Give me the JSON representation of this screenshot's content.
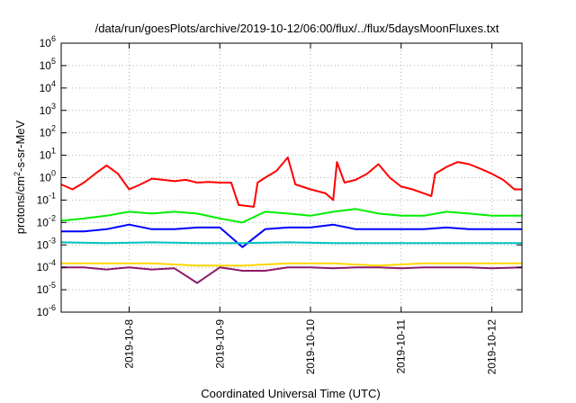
{
  "chart_data": {
    "type": "line",
    "title": "/data/run/goesPlots/archive/2019-10-12/06:00/flux/../flux/5daysMoonFluxes.txt",
    "xlabel": "Coordinated Universal Time (UTC)",
    "ylabel": {
      "prefix": "protons/cm",
      "sup": "2",
      "suffix": "-s-sr-MeV"
    },
    "x_range": [
      "2019-10-07 06:00",
      "2019-10-12 08:00"
    ],
    "x_ticks": [
      "2019-10-8",
      "2019-10-9",
      "2019-10-10",
      "2019-10-11",
      "2019-10-12"
    ],
    "y_scale": "log",
    "y_range": [
      1e-06,
      1000000.0
    ],
    "y_ticks": [
      {
        "base": "10",
        "exp": "-6"
      },
      {
        "base": "10",
        "exp": "-5"
      },
      {
        "base": "10",
        "exp": "-4"
      },
      {
        "base": "10",
        "exp": "-3"
      },
      {
        "base": "10",
        "exp": "-2"
      },
      {
        "base": "10",
        "exp": "-1"
      },
      {
        "base": "10",
        "exp": "0"
      },
      {
        "base": "10",
        "exp": "1"
      },
      {
        "base": "10",
        "exp": "2"
      },
      {
        "base": "10",
        "exp": "3"
      },
      {
        "base": "10",
        "exp": "4"
      },
      {
        "base": "10",
        "exp": "5"
      },
      {
        "base": "10",
        "exp": "6"
      }
    ],
    "grid": true,
    "legend": "none",
    "series": [
      {
        "color": "#ff0000",
        "points": [
          [
            "2019-10-07 06:00",
            0.5
          ],
          [
            "2019-10-07 09:00",
            0.3
          ],
          [
            "2019-10-07 12:00",
            0.6
          ],
          [
            "2019-10-07 15:00",
            1.5
          ],
          [
            "2019-10-07 18:00",
            3.5
          ],
          [
            "2019-10-07 21:00",
            1.5
          ],
          [
            "2019-10-08 00:00",
            0.3
          ],
          [
            "2019-10-08 03:00",
            0.5
          ],
          [
            "2019-10-08 06:00",
            0.9
          ],
          [
            "2019-10-08 09:00",
            0.8
          ],
          [
            "2019-10-08 12:00",
            0.7
          ],
          [
            "2019-10-08 15:00",
            0.8
          ],
          [
            "2019-10-08 18:00",
            0.6
          ],
          [
            "2019-10-08 21:00",
            0.65
          ],
          [
            "2019-10-09 00:00",
            0.6
          ],
          [
            "2019-10-09 03:00",
            0.6
          ],
          [
            "2019-10-09 05:00",
            0.06
          ],
          [
            "2019-10-09 09:00",
            0.05
          ],
          [
            "2019-10-09 10:00",
            0.6
          ],
          [
            "2019-10-09 12:00",
            1.0
          ],
          [
            "2019-10-09 15:00",
            2.0
          ],
          [
            "2019-10-09 18:00",
            8.0
          ],
          [
            "2019-10-09 20:00",
            0.5
          ],
          [
            "2019-10-10 00:00",
            0.3
          ],
          [
            "2019-10-10 04:00",
            0.2
          ],
          [
            "2019-10-10 06:00",
            0.1
          ],
          [
            "2019-10-10 07:00",
            5.0
          ],
          [
            "2019-10-10 09:00",
            0.6
          ],
          [
            "2019-10-10 12:00",
            0.8
          ],
          [
            "2019-10-10 15:00",
            1.5
          ],
          [
            "2019-10-10 18:00",
            4.0
          ],
          [
            "2019-10-10 21:00",
            1.0
          ],
          [
            "2019-10-11 00:00",
            0.4
          ],
          [
            "2019-10-11 03:00",
            0.3
          ],
          [
            "2019-10-11 06:00",
            0.2
          ],
          [
            "2019-10-11 08:00",
            0.15
          ],
          [
            "2019-10-11 09:00",
            1.5
          ],
          [
            "2019-10-11 12:00",
            3.0
          ],
          [
            "2019-10-11 15:00",
            5.0
          ],
          [
            "2019-10-11 18:00",
            4.0
          ],
          [
            "2019-10-11 21:00",
            2.5
          ],
          [
            "2019-10-12 00:00",
            1.5
          ],
          [
            "2019-10-12 03:00",
            0.8
          ],
          [
            "2019-10-12 06:00",
            0.3
          ],
          [
            "2019-10-12 08:00",
            0.3
          ]
        ]
      },
      {
        "color": "#00ee00",
        "points": [
          [
            "2019-10-07 06:00",
            0.012
          ],
          [
            "2019-10-07 12:00",
            0.015
          ],
          [
            "2019-10-07 18:00",
            0.02
          ],
          [
            "2019-10-08 00:00",
            0.03
          ],
          [
            "2019-10-08 06:00",
            0.025
          ],
          [
            "2019-10-08 12:00",
            0.03
          ],
          [
            "2019-10-08 18:00",
            0.025
          ],
          [
            "2019-10-09 00:00",
            0.015
          ],
          [
            "2019-10-09 06:00",
            0.01
          ],
          [
            "2019-10-09 12:00",
            0.03
          ],
          [
            "2019-10-09 18:00",
            0.025
          ],
          [
            "2019-10-10 00:00",
            0.02
          ],
          [
            "2019-10-10 06:00",
            0.03
          ],
          [
            "2019-10-10 12:00",
            0.04
          ],
          [
            "2019-10-10 18:00",
            0.025
          ],
          [
            "2019-10-11 00:00",
            0.02
          ],
          [
            "2019-10-11 06:00",
            0.02
          ],
          [
            "2019-10-11 12:00",
            0.03
          ],
          [
            "2019-10-11 18:00",
            0.025
          ],
          [
            "2019-10-12 00:00",
            0.02
          ],
          [
            "2019-10-12 08:00",
            0.02
          ]
        ]
      },
      {
        "color": "#0000ff",
        "points": [
          [
            "2019-10-07 06:00",
            0.004
          ],
          [
            "2019-10-07 12:00",
            0.004
          ],
          [
            "2019-10-07 18:00",
            0.005
          ],
          [
            "2019-10-08 00:00",
            0.008
          ],
          [
            "2019-10-08 06:00",
            0.005
          ],
          [
            "2019-10-08 12:00",
            0.005
          ],
          [
            "2019-10-08 18:00",
            0.006
          ],
          [
            "2019-10-09 00:00",
            0.006
          ],
          [
            "2019-10-09 06:00",
            0.0008
          ],
          [
            "2019-10-09 12:00",
            0.005
          ],
          [
            "2019-10-09 18:00",
            0.006
          ],
          [
            "2019-10-10 00:00",
            0.006
          ],
          [
            "2019-10-10 06:00",
            0.008
          ],
          [
            "2019-10-10 12:00",
            0.005
          ],
          [
            "2019-10-10 18:00",
            0.005
          ],
          [
            "2019-10-11 00:00",
            0.005
          ],
          [
            "2019-10-11 06:00",
            0.005
          ],
          [
            "2019-10-11 12:00",
            0.006
          ],
          [
            "2019-10-11 18:00",
            0.005
          ],
          [
            "2019-10-12 00:00",
            0.005
          ],
          [
            "2019-10-12 08:00",
            0.005
          ]
        ]
      },
      {
        "color": "#00c0c0",
        "points": [
          [
            "2019-10-07 06:00",
            0.0013
          ],
          [
            "2019-10-07 18:00",
            0.0012
          ],
          [
            "2019-10-08 06:00",
            0.0013
          ],
          [
            "2019-10-08 18:00",
            0.0012
          ],
          [
            "2019-10-09 06:00",
            0.0012
          ],
          [
            "2019-10-09 18:00",
            0.0013
          ],
          [
            "2019-10-10 06:00",
            0.0012
          ],
          [
            "2019-10-10 18:00",
            0.0012
          ],
          [
            "2019-10-11 06:00",
            0.0012
          ],
          [
            "2019-10-11 18:00",
            0.0012
          ],
          [
            "2019-10-12 08:00",
            0.0012
          ]
        ]
      },
      {
        "color": "#ffd700",
        "points": [
          [
            "2019-10-07 06:00",
            0.00015
          ],
          [
            "2019-10-07 18:00",
            0.00015
          ],
          [
            "2019-10-08 06:00",
            0.00015
          ],
          [
            "2019-10-08 18:00",
            0.00012
          ],
          [
            "2019-10-09 06:00",
            0.00012
          ],
          [
            "2019-10-09 18:00",
            0.00015
          ],
          [
            "2019-10-10 06:00",
            0.00015
          ],
          [
            "2019-10-10 18:00",
            0.00012
          ],
          [
            "2019-10-11 06:00",
            0.00015
          ],
          [
            "2019-10-11 18:00",
            0.00015
          ],
          [
            "2019-10-12 08:00",
            0.00015
          ]
        ]
      },
      {
        "color": "#8b1a6b",
        "points": [
          [
            "2019-10-07 06:00",
            0.0001
          ],
          [
            "2019-10-07 12:00",
            0.0001
          ],
          [
            "2019-10-07 18:00",
            8e-05
          ],
          [
            "2019-10-08 00:00",
            0.0001
          ],
          [
            "2019-10-08 06:00",
            8e-05
          ],
          [
            "2019-10-08 12:00",
            9e-05
          ],
          [
            "2019-10-08 18:00",
            2e-05
          ],
          [
            "2019-10-09 00:00",
            0.0001
          ],
          [
            "2019-10-09 06:00",
            7e-05
          ],
          [
            "2019-10-09 12:00",
            7e-05
          ],
          [
            "2019-10-09 18:00",
            0.0001
          ],
          [
            "2019-10-10 00:00",
            0.0001
          ],
          [
            "2019-10-10 06:00",
            9e-05
          ],
          [
            "2019-10-10 12:00",
            0.0001
          ],
          [
            "2019-10-10 18:00",
            0.0001
          ],
          [
            "2019-10-11 00:00",
            9e-05
          ],
          [
            "2019-10-11 06:00",
            0.0001
          ],
          [
            "2019-10-11 12:00",
            0.0001
          ],
          [
            "2019-10-11 18:00",
            0.0001
          ],
          [
            "2019-10-12 00:00",
            9e-05
          ],
          [
            "2019-10-12 08:00",
            0.0001
          ]
        ]
      }
    ]
  }
}
